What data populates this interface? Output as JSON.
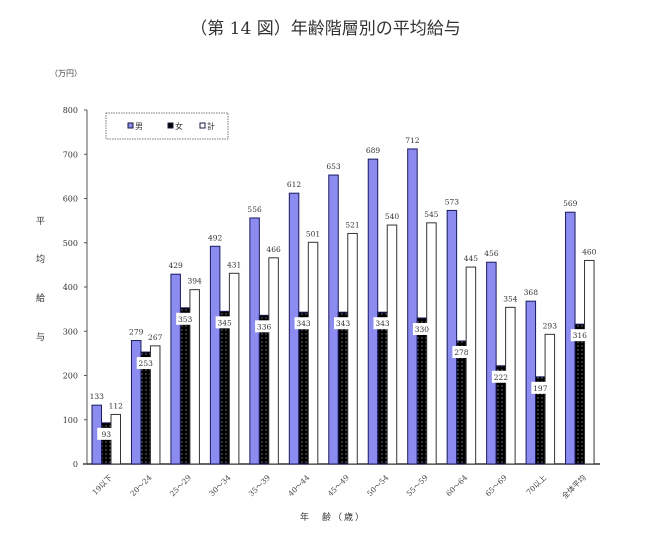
{
  "chart_data": {
    "type": "bar",
    "title": "（第 14 図）年齢階層別の平均給与",
    "unit_label": "（万円）",
    "ylabel": "平均給与",
    "ylabel_chars": [
      "平",
      "均",
      "給",
      "与"
    ],
    "xlabel": "年　齢（歳）",
    "ylim": [
      0,
      800
    ],
    "yticks": [
      0,
      100,
      200,
      300,
      400,
      500,
      600,
      700,
      800
    ],
    "grid": false,
    "legend_position": "top-left inside",
    "categories": [
      "19以下",
      "20～24",
      "25～29",
      "30～34",
      "35～39",
      "40～44",
      "45～49",
      "50～54",
      "55～59",
      "60～64",
      "65～69",
      "70以上",
      "全体平均"
    ],
    "series": [
      {
        "name": "男",
        "color": "#8c8cf0",
        "values": [
          133,
          279,
          429,
          492,
          556,
          612,
          653,
          689,
          712,
          573,
          456,
          368,
          569
        ]
      },
      {
        "name": "女",
        "color": "#000000",
        "pattern": "dotted",
        "values": [
          93,
          253,
          353,
          345,
          336,
          343,
          343,
          343,
          330,
          278,
          222,
          197,
          316
        ]
      },
      {
        "name": "計",
        "color": "#ffffff",
        "values": [
          112,
          267,
          394,
          431,
          466,
          501,
          521,
          540,
          545,
          445,
          354,
          293,
          460
        ]
      }
    ]
  }
}
